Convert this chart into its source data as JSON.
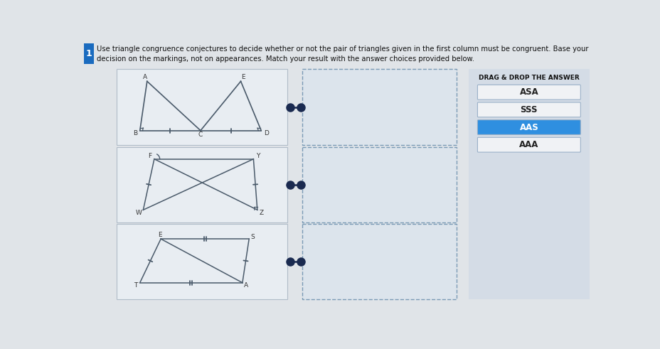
{
  "bg_color": "#e0e4e8",
  "title_box_color": "#1a6bbf",
  "title_num": "1",
  "title_text": "Use triangle congruence conjectures to decide whether or not the pair of triangles given in the first column must be congruent. Base your\ndecision on the markings, not on appearances. Match your result with the answer choices provided below.",
  "drag_label": "DRAG & DROP THE ANSWER",
  "answer_choices": [
    "ASA",
    "SSS",
    "AAS",
    "AAA"
  ],
  "answer_highlight": "AAS",
  "answer_highlight_color": "#2f8fe0",
  "answer_default_color": "#f0f2f5",
  "tri_panel_bg": "#e8edf2",
  "tri_panel_ec": "#b0bcc8",
  "drop_panel_bg": "#dce4ec",
  "drop_panel_ec": "#7a9ab5",
  "right_panel_bg": "#d4dce6",
  "connector_color": "#1a2a50",
  "line_color": "#4a5a6a",
  "label_color": "#333333"
}
